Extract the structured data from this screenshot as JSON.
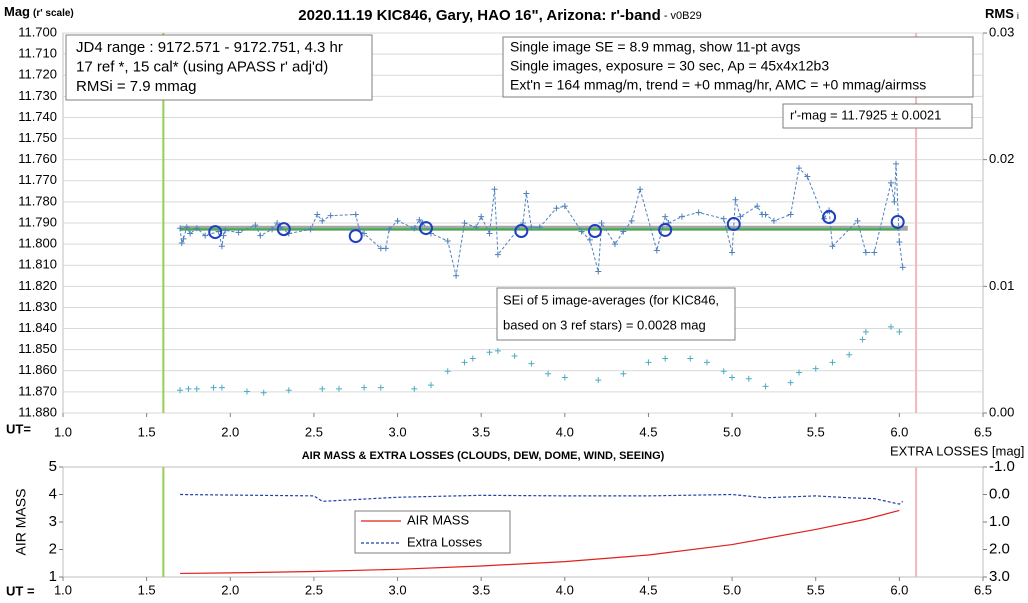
{
  "chart_data": [
    {
      "type": "line",
      "title": "2020.11.19 KIC846, Gary, HAO 16\", Arizona: r'-band",
      "subtitle": " - v0B29",
      "y_label": "Mag",
      "y_label_note": "(r' scale)",
      "y2_label": "RMS",
      "y2_label_sub": "i",
      "x_label": "UT=",
      "xlim": [
        1.0,
        6.5
      ],
      "xticks": [
        {
          "value": 1.0,
          "label": "1.0"
        },
        {
          "value": 1.5,
          "label": "1.5"
        },
        {
          "value": 2.0,
          "label": "2.0"
        },
        {
          "value": 2.5,
          "label": "2.5"
        },
        {
          "value": 3.0,
          "label": "3.0"
        },
        {
          "value": 3.5,
          "label": "3.5"
        },
        {
          "value": 4.0,
          "label": "4.0"
        },
        {
          "value": 4.5,
          "label": "4.5"
        },
        {
          "value": 5.0,
          "label": "5.0"
        },
        {
          "value": 5.5,
          "label": "5.5"
        },
        {
          "value": 6.0,
          "label": "6.0"
        },
        {
          "value": 6.5,
          "label": "6.5"
        }
      ],
      "ylim": [
        11.88,
        11.7
      ],
      "yticks": [
        {
          "value": 11.7,
          "label": "11.700"
        },
        {
          "value": 11.71,
          "label": "11.710"
        },
        {
          "value": 11.72,
          "label": "11.720"
        },
        {
          "value": 11.73,
          "label": "11.730"
        },
        {
          "value": 11.74,
          "label": "11.740"
        },
        {
          "value": 11.75,
          "label": "11.750"
        },
        {
          "value": 11.76,
          "label": "11.760"
        },
        {
          "value": 11.77,
          "label": "11.770"
        },
        {
          "value": 11.78,
          "label": "11.780"
        },
        {
          "value": 11.79,
          "label": "11.790"
        },
        {
          "value": 11.8,
          "label": "11.800"
        },
        {
          "value": 11.81,
          "label": "11.810"
        },
        {
          "value": 11.82,
          "label": "11.820"
        },
        {
          "value": 11.83,
          "label": "11.830"
        },
        {
          "value": 11.84,
          "label": "11.840"
        },
        {
          "value": 11.85,
          "label": "11.850"
        },
        {
          "value": 11.86,
          "label": "11.860"
        },
        {
          "value": 11.87,
          "label": "11.870"
        },
        {
          "value": 11.88,
          "label": "11.880"
        }
      ],
      "y2lim": [
        0.0,
        0.03
      ],
      "y2ticks": [
        {
          "value": 0.0,
          "label": "0.00"
        },
        {
          "value": 0.01,
          "label": "0.01"
        },
        {
          "value": 0.02,
          "label": "0.02"
        },
        {
          "value": 0.03,
          "label": "0.03"
        }
      ],
      "grid": true,
      "vlines": [
        {
          "x": 1.6,
          "color": "#92d050"
        },
        {
          "x": 6.1,
          "color": "#f4b8b8"
        }
      ],
      "series": [
        {
          "color": "#a6a6a6",
          "line": "solid",
          "width": 5,
          "marker": "none",
          "x": [
            1.7,
            6.05
          ],
          "values": [
            11.7925,
            11.7925
          ]
        },
        {
          "color": "#3cb04a",
          "line": "solid",
          "width": 2,
          "marker": "none",
          "x": [
            1.7,
            6.0
          ],
          "values": [
            11.793,
            11.793
          ]
        },
        {
          "color": "#4f81bd",
          "line": "dashed",
          "width": 1,
          "marker": "plus",
          "x": [
            1.7,
            1.71,
            1.72,
            1.74,
            1.76,
            1.8,
            1.85,
            1.93,
            1.95,
            1.96,
            1.97,
            2.05,
            2.15,
            2.18,
            2.25,
            2.28,
            2.3,
            2.35,
            2.48,
            2.52,
            2.55,
            2.6,
            2.75,
            2.77,
            2.8,
            2.9,
            2.93,
            2.95,
            3.0,
            3.1,
            3.13,
            3.15,
            3.2,
            3.3,
            3.35,
            3.4,
            3.47,
            3.5,
            3.55,
            3.58,
            3.6,
            3.75,
            3.77,
            3.8,
            3.85,
            3.95,
            4.0,
            4.1,
            4.15,
            4.2,
            4.22,
            4.3,
            4.35,
            4.4,
            4.45,
            4.55,
            4.6,
            4.62,
            4.7,
            4.8,
            4.95,
            5.0,
            5.02,
            5.05,
            5.15,
            5.18,
            5.2,
            5.25,
            5.35,
            5.4,
            5.45,
            5.55,
            5.58,
            5.6,
            5.75,
            5.8,
            5.85,
            5.95,
            5.97,
            5.98,
            6.0,
            6.02
          ],
          "values": [
            11.7925,
            11.7995,
            11.7975,
            11.792,
            11.795,
            11.7925,
            11.796,
            11.794,
            11.801,
            11.796,
            11.7935,
            11.7945,
            11.791,
            11.796,
            11.793,
            11.79,
            11.792,
            11.795,
            11.793,
            11.786,
            11.789,
            11.7865,
            11.786,
            11.793,
            11.795,
            11.802,
            11.802,
            11.793,
            11.789,
            11.7925,
            11.7885,
            11.79,
            11.795,
            11.7985,
            11.815,
            11.79,
            11.792,
            11.787,
            11.795,
            11.774,
            11.805,
            11.79,
            11.776,
            11.792,
            11.792,
            11.783,
            11.782,
            11.794,
            11.798,
            11.813,
            11.79,
            11.8,
            11.794,
            11.789,
            11.774,
            11.803,
            11.787,
            11.79,
            11.787,
            11.785,
            11.788,
            11.804,
            11.779,
            11.787,
            11.782,
            11.786,
            11.786,
            11.789,
            11.786,
            11.764,
            11.768,
            11.788,
            11.784,
            11.801,
            11.789,
            11.804,
            11.804,
            11.771,
            11.78,
            11.762,
            11.799,
            11.811
          ]
        },
        {
          "color": "#1f3fbf",
          "line": "none",
          "width": 2,
          "marker": "circle",
          "x": [
            1.91,
            2.32,
            2.75,
            3.17,
            3.74,
            4.18,
            4.6,
            5.01,
            5.58,
            5.99
          ],
          "values": [
            11.7943,
            11.7929,
            11.7962,
            11.7924,
            11.7938,
            11.7938,
            11.7933,
            11.7905,
            11.7872,
            11.7895
          ]
        },
        {
          "color": "#4bacc6",
          "line": "none",
          "width": 1,
          "marker": "plus",
          "axis": "y2",
          "x": [
            1.7,
            1.75,
            1.8,
            1.9,
            1.95,
            2.1,
            2.2,
            2.35,
            2.55,
            2.65,
            2.8,
            2.9,
            3.1,
            3.2,
            3.3,
            3.4,
            3.45,
            3.55,
            3.6,
            3.7,
            3.8,
            3.9,
            4.0,
            4.2,
            4.35,
            4.5,
            4.6,
            4.75,
            4.85,
            4.95,
            5.0,
            5.1,
            5.2,
            5.35,
            5.4,
            5.5,
            5.6,
            5.7,
            5.78,
            5.8,
            5.95,
            6.0
          ],
          "values": [
            0.0018,
            0.0019,
            0.0019,
            0.002,
            0.002,
            0.0017,
            0.0016,
            0.0018,
            0.0019,
            0.0019,
            0.002,
            0.002,
            0.0019,
            0.0022,
            0.0033,
            0.004,
            0.0043,
            0.0048,
            0.0049,
            0.0045,
            0.0039,
            0.0031,
            0.0028,
            0.0026,
            0.0031,
            0.004,
            0.0043,
            0.0043,
            0.004,
            0.0033,
            0.0028,
            0.0027,
            0.0021,
            0.0024,
            0.0032,
            0.0035,
            0.004,
            0.0046,
            0.0058,
            0.0064,
            0.0068,
            0.0064
          ]
        }
      ],
      "annotations": [
        {
          "lines": [
            "JD4 range : 9172.571 - 9172.751,  4.3  hr",
            "17 ref *, 15 cal* (using APASS r' adj'd)",
            "RMSi = 7.9 mmag"
          ]
        },
        {
          "lines": [
            "Single image SE = 8.9 mmag, show  11-pt avgs",
            "Single images, exposure = 30 sec, Ap = 45x4x12b3",
            "Ext'n = 164 mmag/m, trend =  +0 mmag/hr, AMC = +0 mmag/airmss"
          ]
        },
        {
          "lines": [
            "r'-mag = 11.7925 ± 0.0021"
          ]
        },
        {
          "lines": [
            "SEi of 5 image-averages (for KIC846,",
            "based on 3 ref stars) = 0.0028 mag"
          ]
        }
      ]
    },
    {
      "type": "line",
      "title": "AIR MASS & EXTRA LOSSES (CLOUDS, DEW, DOME, WIND, SEEING)",
      "y_label": "AIR MASS",
      "y2_label": "EXTRA LOSSES [mag]",
      "x_label": "UT =",
      "xlim": [
        1.0,
        6.5
      ],
      "xticks": [
        {
          "value": 1.0,
          "label": "1.0"
        },
        {
          "value": 1.5,
          "label": "1.5"
        },
        {
          "value": 2.0,
          "label": "2.0"
        },
        {
          "value": 2.5,
          "label": "2.5"
        },
        {
          "value": 3.0,
          "label": "3.0"
        },
        {
          "value": 3.5,
          "label": "3.5"
        },
        {
          "value": 4.0,
          "label": "4.0"
        },
        {
          "value": 4.5,
          "label": "4.5"
        },
        {
          "value": 5.0,
          "label": "5.0"
        },
        {
          "value": 5.5,
          "label": "5.5"
        },
        {
          "value": 6.0,
          "label": "6.0"
        },
        {
          "value": 6.5,
          "label": "6.5"
        }
      ],
      "ylim": [
        1,
        5
      ],
      "yticks": [
        1,
        2,
        3,
        4,
        5
      ],
      "y2lim": [
        3.0,
        -1.0
      ],
      "y2ticks": [
        {
          "value": -1.0,
          "label": "-1.0"
        },
        {
          "value": 0.0,
          "label": "0.0"
        },
        {
          "value": 1.0,
          "label": "1.0"
        },
        {
          "value": 2.0,
          "label": "2.0"
        },
        {
          "value": 3.0,
          "label": "3.0"
        }
      ],
      "grid": false,
      "vlines": [
        {
          "x": 1.6,
          "color": "#92d050"
        },
        {
          "x": 6.1,
          "color": "#f4b8b8"
        }
      ],
      "series": [
        {
          "name": "AIR MASS",
          "color": "#e0201b",
          "line": "solid",
          "width": 1.2,
          "marker": "none",
          "x": [
            1.7,
            2.0,
            2.5,
            3.0,
            3.5,
            4.0,
            4.5,
            5.0,
            5.5,
            5.8,
            6.0
          ],
          "values": [
            1.13,
            1.15,
            1.2,
            1.28,
            1.4,
            1.56,
            1.8,
            2.18,
            2.73,
            3.1,
            3.42
          ]
        },
        {
          "name": "Extra Losses",
          "color": "#1f3fa8",
          "line": "dashed",
          "width": 1.2,
          "marker": "none",
          "axis": "y2",
          "x": [
            1.7,
            2.0,
            2.5,
            2.55,
            3.0,
            3.5,
            4.0,
            4.5,
            5.0,
            5.2,
            5.5,
            5.7,
            5.85,
            6.0,
            6.02
          ],
          "values": [
            0.0,
            0.02,
            0.05,
            0.25,
            0.1,
            0.03,
            0.05,
            0.05,
            0.0,
            0.12,
            0.05,
            0.12,
            0.15,
            0.35,
            0.25
          ]
        }
      ]
    }
  ]
}
